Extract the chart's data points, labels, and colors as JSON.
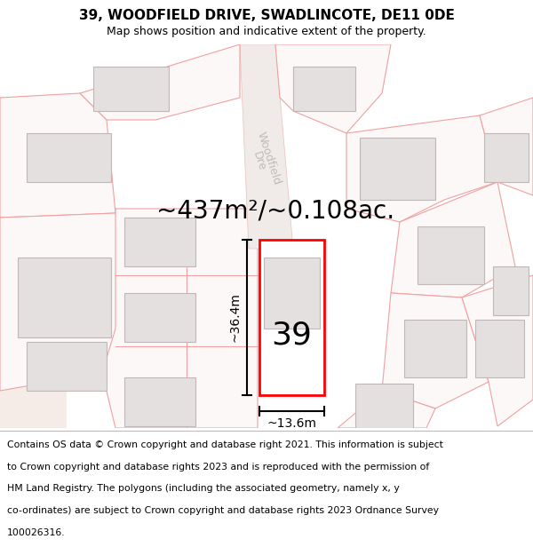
{
  "title": "39, WOODFIELD DRIVE, SWADLINCOTE, DE11 0DE",
  "subtitle": "Map shows position and indicative extent of the property.",
  "area_text": "~437m²/~0.108ac.",
  "number_label": "39",
  "width_label": "~13.6m",
  "height_label": "~36.4m",
  "street_label": "Woodfield Dre",
  "footer_lines": [
    "Contains OS data © Crown copyright and database right 2021. This information is subject",
    "to Crown copyright and database rights 2023 and is reproduced with the permission of",
    "HM Land Registry. The polygons (including the associated geometry, namely x, y",
    "co-ordinates) are subject to Crown copyright and database rights 2023 Ordnance Survey",
    "100026316."
  ],
  "bg_color": "#ffffff",
  "map_bg": "#faf5f5",
  "plot_color": "#ff0000",
  "neighbor_fill": "#fdf8f8",
  "neighbor_edge": "#f0a0a0",
  "building_fill": "#e5e0e0",
  "building_edge": "#c0b8b8",
  "left_strip_fill": "#f5ece8",
  "title_fontsize": 11,
  "subtitle_fontsize": 9,
  "area_fontsize": 20,
  "number_fontsize": 26,
  "dim_fontsize": 10,
  "footer_fontsize": 7.8,
  "street_fontsize": 9
}
